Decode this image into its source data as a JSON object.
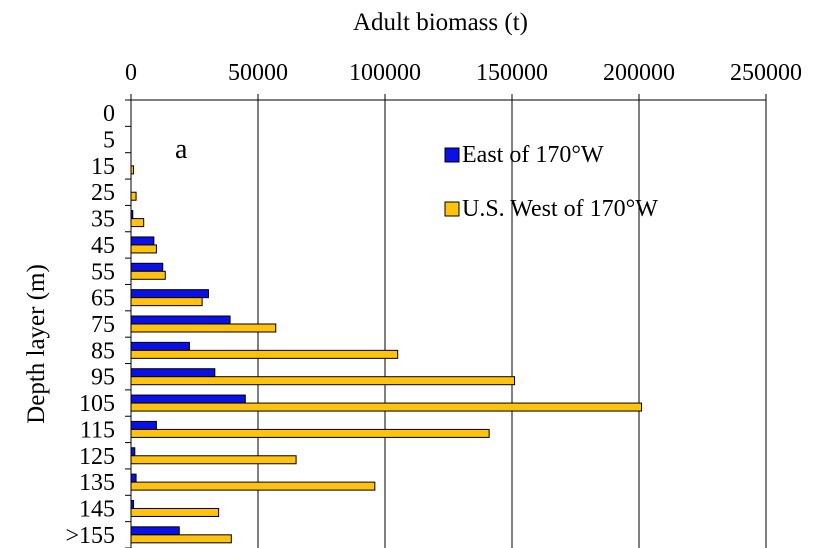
{
  "chart_data": {
    "type": "bar",
    "orientation": "horizontal",
    "panel_label": "a",
    "xlabel": "Adult biomass (t)",
    "ylabel": "Depth layer (m)",
    "xlim": [
      0,
      250000
    ],
    "x_ticks": [
      "0",
      "50000",
      "100000",
      "150000",
      "200000",
      "250000"
    ],
    "x_axis_position": "top",
    "grid": "vertical gridlines at major ticks",
    "legend_position": "top-right",
    "categories": [
      "0",
      "5",
      "15",
      "25",
      "35",
      "45",
      "55",
      "65",
      "75",
      "85",
      "95",
      "105",
      "115",
      "125",
      "135",
      "145",
      ">155"
    ],
    "series": [
      {
        "name": "East of 170°W",
        "color": "#0a10e6",
        "values": [
          0,
          0,
          0,
          0,
          700,
          9000,
          12500,
          30500,
          39000,
          23000,
          33000,
          45000,
          10000,
          1500,
          2000,
          1000,
          19000
        ]
      },
      {
        "name": "U.S. West of 170°W",
        "color": "#ffc20e",
        "values": [
          0,
          0,
          1000,
          2000,
          5000,
          10000,
          13500,
          28000,
          57000,
          105000,
          151000,
          201000,
          141000,
          65000,
          96000,
          34500,
          39500
        ]
      }
    ]
  }
}
